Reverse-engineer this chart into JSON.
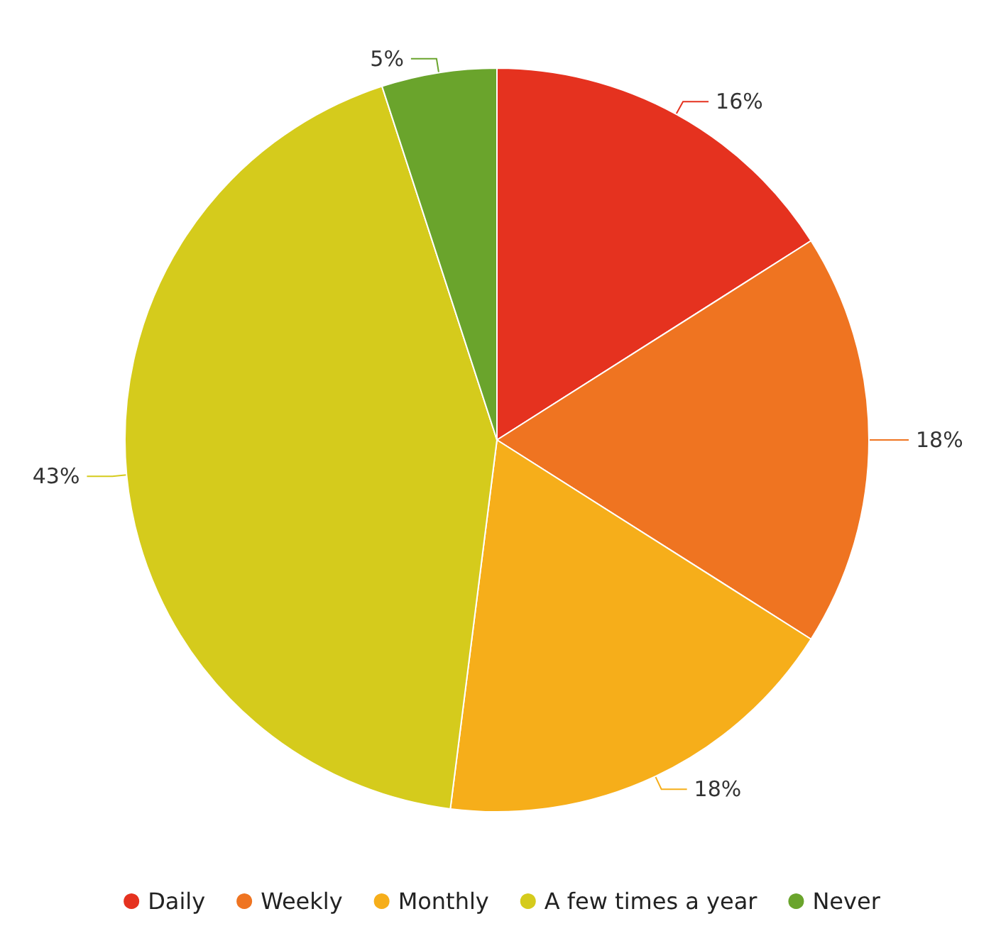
{
  "chart_data": {
    "type": "pie",
    "categories": [
      "Daily",
      "Weekly",
      "Monthly",
      "A few times a year",
      "Never"
    ],
    "values": [
      16,
      18,
      18,
      43,
      5
    ],
    "colors": [
      "#e5321f",
      "#ef7421",
      "#f6ae1a",
      "#d5cb1c",
      "#6aa42c"
    ],
    "value_labels": [
      "16%",
      "18%",
      "18%",
      "43%",
      "5%"
    ],
    "legend": "bottom"
  }
}
